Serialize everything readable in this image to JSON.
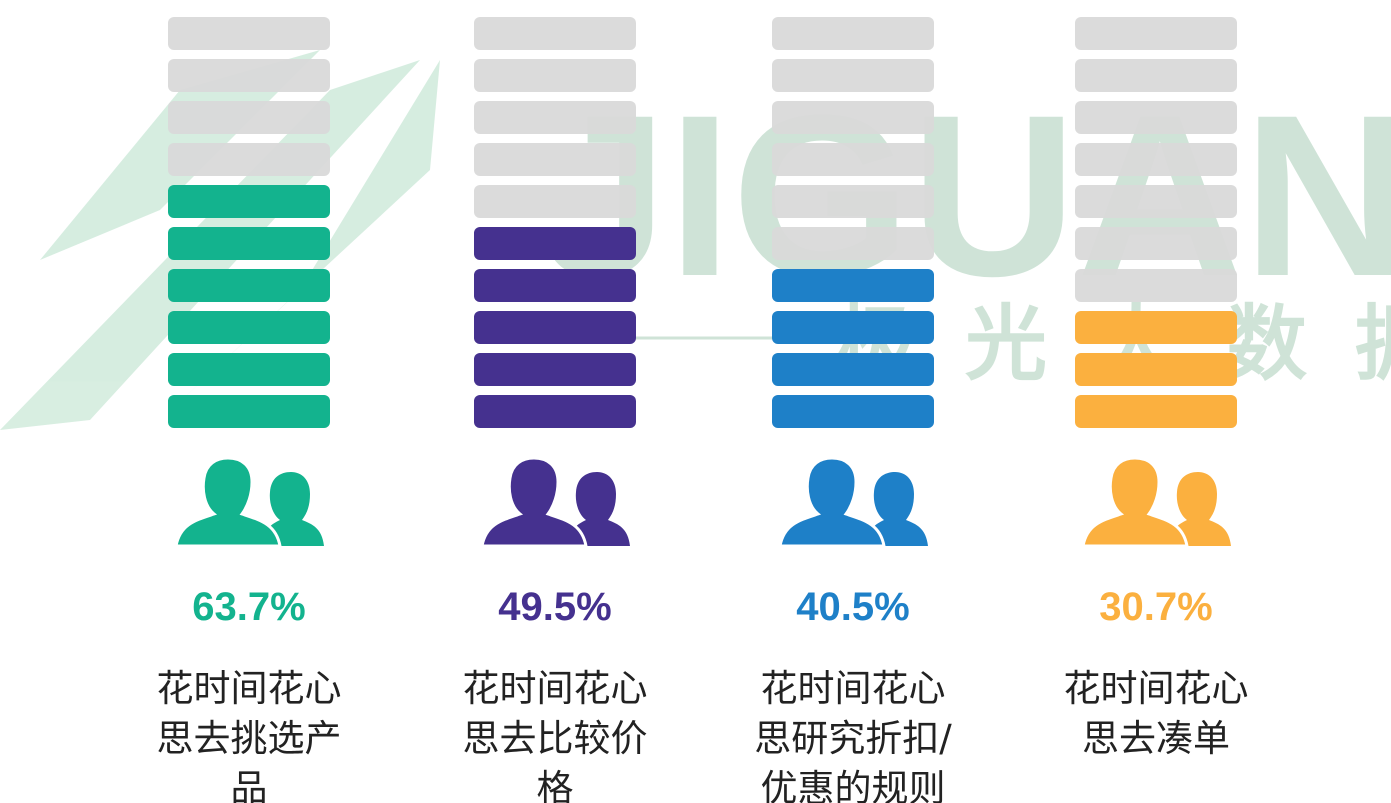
{
  "chart_data": {
    "type": "pictograph",
    "watermark": "JIGUANG",
    "watermark_subtitle": "极光大数据",
    "categories": [
      "花时间花心思去挑选产品",
      "花时间花心思去比较价格",
      "花时间花心思研究折扣/优惠的规则",
      "花时间花心思去凑单"
    ],
    "values": [
      63.7,
      49.5,
      40.5,
      30.7
    ],
    "value_labels": [
      "63.7%",
      "49.5%",
      "40.5%",
      "30.7%"
    ],
    "colors": [
      "#13b38e",
      "#45318f",
      "#1e80c8",
      "#fbb03f"
    ],
    "ylim": [
      0,
      100
    ]
  }
}
